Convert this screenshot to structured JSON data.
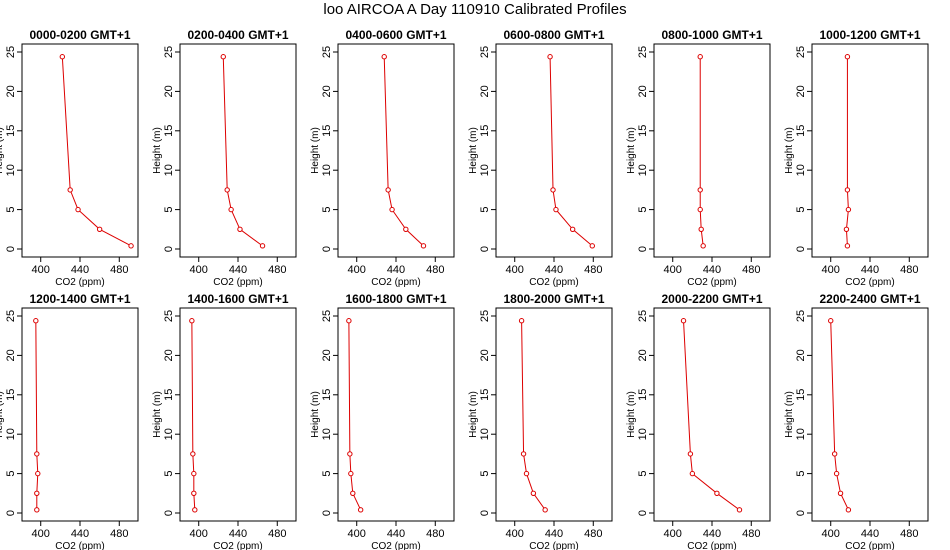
{
  "figure": {
    "title": "loo AIRCOA A  Day 110910  Calibrated Profiles"
  },
  "colors": {
    "line": "#dd0000",
    "axis": "#000000"
  },
  "chart_data": [
    {
      "type": "line",
      "title": "0000-0200 GMT+1",
      "xlabel": "CO2 (ppm)",
      "ylabel": "Height (m)",
      "xlim": [
        385,
        495
      ],
      "ylim": [
        0,
        25
      ],
      "xticks": [
        400,
        440,
        480
      ],
      "yticks": [
        0,
        5,
        10,
        15,
        20,
        25
      ],
      "series": [
        {
          "x": [
            422,
            430,
            438,
            460,
            492
          ],
          "y": [
            24.4,
            7.5,
            5.0,
            2.5,
            0.4
          ]
        }
      ]
    },
    {
      "type": "line",
      "title": "0200-0400 GMT+1",
      "xlabel": "CO2 (ppm)",
      "ylabel": "Height (m)",
      "xlim": [
        385,
        495
      ],
      "ylim": [
        0,
        25
      ],
      "xticks": [
        400,
        440,
        480
      ],
      "yticks": [
        0,
        5,
        10,
        15,
        20,
        25
      ],
      "series": [
        {
          "x": [
            425,
            429,
            433,
            442,
            465
          ],
          "y": [
            24.4,
            7.5,
            5.0,
            2.5,
            0.4
          ]
        }
      ]
    },
    {
      "type": "line",
      "title": "0400-0600 GMT+1",
      "xlabel": "CO2 (ppm)",
      "ylabel": "Height (m)",
      "xlim": [
        385,
        495
      ],
      "ylim": [
        0,
        25
      ],
      "xticks": [
        400,
        440,
        480
      ],
      "yticks": [
        0,
        5,
        10,
        15,
        20,
        25
      ],
      "series": [
        {
          "x": [
            428,
            432,
            436,
            450,
            468
          ],
          "y": [
            24.4,
            7.5,
            5.0,
            2.5,
            0.4
          ]
        }
      ]
    },
    {
      "type": "line",
      "title": "0600-0800 GMT+1",
      "xlabel": "CO2 (ppm)",
      "ylabel": "Height (m)",
      "xlim": [
        385,
        495
      ],
      "ylim": [
        0,
        25
      ],
      "xticks": [
        400,
        440,
        480
      ],
      "yticks": [
        0,
        5,
        10,
        15,
        20,
        25
      ],
      "series": [
        {
          "x": [
            436,
            439,
            442,
            459,
            479
          ],
          "y": [
            24.4,
            7.5,
            5.0,
            2.5,
            0.4
          ]
        }
      ]
    },
    {
      "type": "line",
      "title": "0800-1000 GMT+1",
      "xlabel": "CO2 (ppm)",
      "ylabel": "Height (m)",
      "xlim": [
        385,
        495
      ],
      "ylim": [
        0,
        25
      ],
      "xticks": [
        400,
        440,
        480
      ],
      "yticks": [
        0,
        5,
        10,
        15,
        20,
        25
      ],
      "series": [
        {
          "x": [
            428,
            428,
            428,
            429,
            431
          ],
          "y": [
            24.4,
            7.5,
            5.0,
            2.5,
            0.4
          ]
        }
      ]
    },
    {
      "type": "line",
      "title": "1000-1200 GMT+1",
      "xlabel": "CO2 (ppm)",
      "ylabel": "Height (m)",
      "xlim": [
        385,
        495
      ],
      "ylim": [
        0,
        25
      ],
      "xticks": [
        400,
        440,
        480
      ],
      "yticks": [
        0,
        5,
        10,
        15,
        20,
        25
      ],
      "series": [
        {
          "x": [
            417,
            417,
            418,
            416,
            417
          ],
          "y": [
            24.4,
            7.5,
            5.0,
            2.5,
            0.4
          ]
        }
      ]
    },
    {
      "type": "line",
      "title": "1200-1400 GMT+1",
      "xlabel": "CO2 (ppm)",
      "ylabel": "Height (m)",
      "xlim": [
        385,
        495
      ],
      "ylim": [
        0,
        25
      ],
      "xticks": [
        400,
        440,
        480
      ],
      "yticks": [
        0,
        5,
        10,
        15,
        20,
        25
      ],
      "series": [
        {
          "x": [
            395,
            396,
            397,
            396,
            396
          ],
          "y": [
            24.4,
            7.5,
            5.0,
            2.5,
            0.4
          ]
        }
      ]
    },
    {
      "type": "line",
      "title": "1400-1600 GMT+1",
      "xlabel": "CO2 (ppm)",
      "ylabel": "Height (m)",
      "xlim": [
        385,
        495
      ],
      "ylim": [
        0,
        25
      ],
      "xticks": [
        400,
        440,
        480
      ],
      "yticks": [
        0,
        5,
        10,
        15,
        20,
        25
      ],
      "series": [
        {
          "x": [
            393,
            394,
            395,
            395,
            396
          ],
          "y": [
            24.4,
            7.5,
            5.0,
            2.5,
            0.4
          ]
        }
      ]
    },
    {
      "type": "line",
      "title": "1600-1800 GMT+1",
      "xlabel": "CO2 (ppm)",
      "ylabel": "Height (m)",
      "xlim": [
        385,
        495
      ],
      "ylim": [
        0,
        25
      ],
      "xticks": [
        400,
        440,
        480
      ],
      "yticks": [
        0,
        5,
        10,
        15,
        20,
        25
      ],
      "series": [
        {
          "x": [
            392,
            393,
            394,
            396,
            404
          ],
          "y": [
            24.4,
            7.5,
            5.0,
            2.5,
            0.4
          ]
        }
      ]
    },
    {
      "type": "line",
      "title": "1800-2000 GMT+1",
      "xlabel": "CO2 (ppm)",
      "ylabel": "Height (m)",
      "xlim": [
        385,
        495
      ],
      "ylim": [
        0,
        25
      ],
      "xticks": [
        400,
        440,
        480
      ],
      "yticks": [
        0,
        5,
        10,
        15,
        20,
        25
      ],
      "series": [
        {
          "x": [
            407,
            409,
            412,
            419,
            431
          ],
          "y": [
            24.4,
            7.5,
            5.0,
            2.5,
            0.4
          ]
        }
      ]
    },
    {
      "type": "line",
      "title": "2000-2200 GMT+1",
      "xlabel": "CO2 (ppm)",
      "ylabel": "Height (m)",
      "xlim": [
        385,
        495
      ],
      "ylim": [
        0,
        25
      ],
      "xticks": [
        400,
        440,
        480
      ],
      "yticks": [
        0,
        5,
        10,
        15,
        20,
        25
      ],
      "series": [
        {
          "x": [
            411,
            418,
            420,
            445,
            468
          ],
          "y": [
            24.4,
            7.5,
            5.0,
            2.5,
            0.4
          ]
        }
      ]
    },
    {
      "type": "line",
      "title": "2200-2400 GMT+1",
      "xlabel": "CO2 (ppm)",
      "ylabel": "Height (m)",
      "xlim": [
        385,
        495
      ],
      "ylim": [
        0,
        25
      ],
      "xticks": [
        400,
        440,
        480
      ],
      "yticks": [
        0,
        5,
        10,
        15,
        20,
        25
      ],
      "series": [
        {
          "x": [
            400,
            404,
            406,
            410,
            418
          ],
          "y": [
            24.4,
            7.5,
            5.0,
            2.5,
            0.4
          ]
        }
      ]
    }
  ]
}
